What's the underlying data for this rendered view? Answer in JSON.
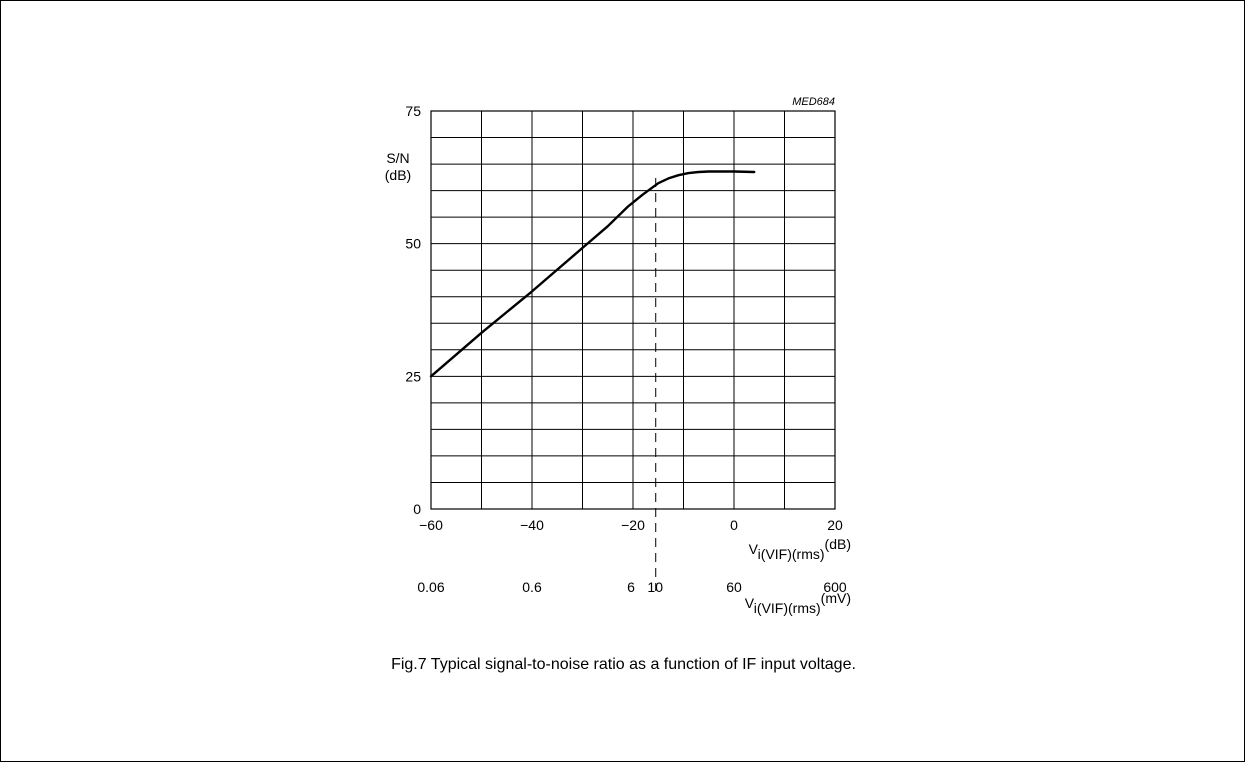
{
  "figure_ref": "MED684",
  "caption": "Fig.7  Typical signal-to-noise ratio as a function of IF input voltage.",
  "chart_data": {
    "type": "line",
    "y_label_lines": [
      "S/N",
      "(dB)"
    ],
    "x_label": {
      "base": "V",
      "sub": "i(VIF)(rms)",
      "sup": "(dB)"
    },
    "x2_label": {
      "base": "V",
      "sub": "i(VIF)(rms)",
      "sup": "(mV)"
    },
    "xlim": [
      -60,
      20
    ],
    "ylim": [
      0,
      75
    ],
    "x_ticks": [
      {
        "value": -60,
        "label": "−60"
      },
      {
        "value": -40,
        "label": "−40"
      },
      {
        "value": -20,
        "label": "−20"
      },
      {
        "value": 0,
        "label": "0"
      },
      {
        "value": 20,
        "label": "20"
      }
    ],
    "y_ticks": [
      {
        "value": 0,
        "label": "0"
      },
      {
        "value": 25,
        "label": "25"
      },
      {
        "value": 50,
        "label": "50"
      },
      {
        "value": 75,
        "label": "75"
      }
    ],
    "x2_ticks": [
      {
        "value": -60,
        "label": "0.06"
      },
      {
        "value": -40,
        "label": "0.6"
      },
      {
        "value": -20,
        "label": "6"
      },
      {
        "value": -16,
        "label": "10"
      },
      {
        "value": 0,
        "label": "60"
      },
      {
        "value": 20,
        "label": "600"
      }
    ],
    "grid": true,
    "grid_step_x": 10,
    "grid_step_y": 5,
    "reference_line_x": -15.5,
    "series": [
      {
        "x": [
          -60,
          -50,
          -40,
          -30,
          -25,
          -21,
          -18,
          -15,
          -13,
          -11,
          -9,
          -7,
          -5,
          -3,
          0,
          4
        ],
        "y": [
          25,
          33.2,
          41,
          49.2,
          53.3,
          57,
          59.3,
          61.4,
          62.3,
          62.9,
          63.3,
          63.5,
          63.6,
          63.6,
          63.6,
          63.5
        ]
      }
    ]
  }
}
